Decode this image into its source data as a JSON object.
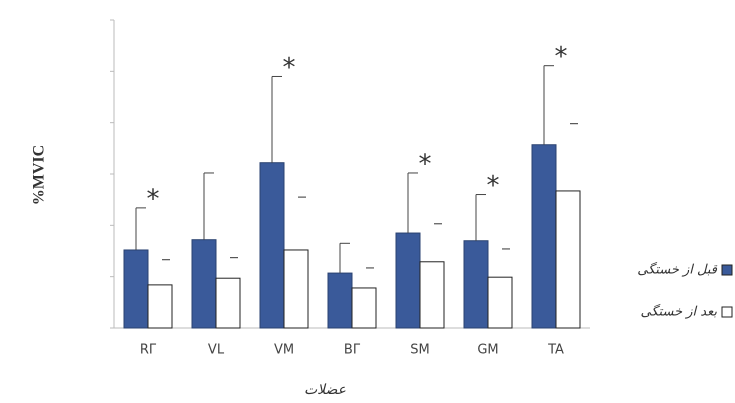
{
  "chart_data": {
    "type": "bar",
    "y_label": "%MVIC",
    "x_label": "عضلات",
    "categories": [
      "RΓ",
      "VL",
      "VM",
      "BΓ",
      "SM",
      "GM",
      "TA"
    ],
    "series": [
      {
        "name": "قبل از خستگی",
        "color": "#3a5a9a",
        "values": [
          1.52,
          1.72,
          3.22,
          1.07,
          1.85,
          1.7,
          3.57
        ],
        "errors": [
          0.82,
          1.3,
          1.68,
          0.58,
          1.17,
          0.9,
          1.54
        ]
      },
      {
        "name": "بعد از خستگی",
        "color": "#ffffff",
        "values": [
          0.84,
          0.97,
          1.52,
          0.78,
          1.29,
          0.99,
          2.67
        ],
        "errors": [
          0.49,
          0.4,
          1.03,
          0.39,
          0.74,
          0.55,
          1.31
        ]
      }
    ],
    "significance_marker": "*",
    "significant": [
      true,
      false,
      true,
      false,
      true,
      true,
      true
    ],
    "ylim": [
      0,
      6
    ],
    "yticks": [
      0,
      1,
      2,
      3,
      4,
      5,
      6
    ]
  }
}
